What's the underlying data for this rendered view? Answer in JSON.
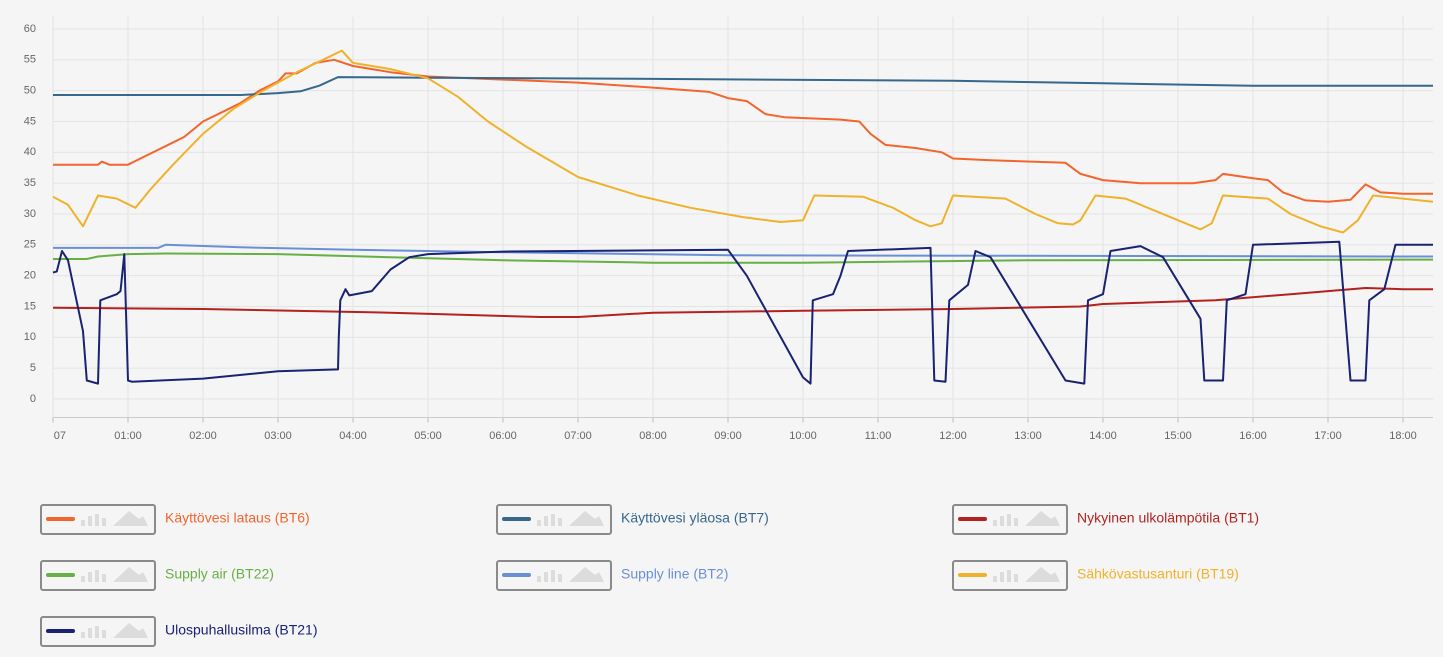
{
  "chart_data": {
    "type": "line",
    "xlim": [
      0,
      18.4
    ],
    "xticks": [
      {
        "value": 0,
        "label": "07"
      },
      {
        "value": 1,
        "label": "01:00"
      },
      {
        "value": 2,
        "label": "02:00"
      },
      {
        "value": 3,
        "label": "03:00"
      },
      {
        "value": 4,
        "label": "04:00"
      },
      {
        "value": 5,
        "label": "05:00"
      },
      {
        "value": 6,
        "label": "06:00"
      },
      {
        "value": 7,
        "label": "07:00"
      },
      {
        "value": 8,
        "label": "08:00"
      },
      {
        "value": 9,
        "label": "09:00"
      },
      {
        "value": 10,
        "label": "10:00"
      },
      {
        "value": 11,
        "label": "11:00"
      },
      {
        "value": 12,
        "label": "12:00"
      },
      {
        "value": 13,
        "label": "13:00"
      },
      {
        "value": 14,
        "label": "14:00"
      },
      {
        "value": 15,
        "label": "15:00"
      },
      {
        "value": 16,
        "label": "16:00"
      },
      {
        "value": 17,
        "label": "17:00"
      },
      {
        "value": 18,
        "label": "18:00"
      }
    ],
    "ylim": [
      -3,
      62
    ],
    "yticks": [
      0,
      5,
      10,
      15,
      20,
      25,
      30,
      35,
      40,
      45,
      50,
      55,
      60
    ],
    "grid": true,
    "series": [
      {
        "name": "Käyttövesi lataus (BT6)",
        "color": "#f2652d",
        "x": [
          0,
          0.6,
          0.65,
          0.75,
          1,
          1.25,
          1.5,
          1.75,
          2,
          2.25,
          2.5,
          2.75,
          3,
          3.1,
          3.25,
          3.5,
          3.75,
          4,
          4.25,
          4.5,
          5,
          6,
          7,
          8,
          8.75,
          9,
          9.25,
          9.5,
          9.75,
          10.5,
          10.75,
          10.9,
          11.1,
          11.5,
          11.85,
          12,
          12.5,
          13.5,
          13.7,
          14,
          14.5,
          15.2,
          15.5,
          15.6,
          16,
          16.2,
          16.4,
          16.7,
          17,
          17.3,
          17.5,
          17.7,
          18,
          18.4
        ],
        "values": [
          38,
          38,
          38.5,
          38,
          38,
          39.5,
          41,
          42.5,
          45,
          46.5,
          48,
          50,
          51.5,
          52.8,
          52.8,
          54.5,
          55,
          54,
          53.5,
          53,
          52.3,
          51.8,
          51.3,
          50.5,
          49.8,
          48.8,
          48.3,
          46.2,
          45.7,
          45.3,
          45,
          43,
          41.2,
          40.7,
          40,
          39,
          38.7,
          38.3,
          36.5,
          35.5,
          35,
          35,
          35.5,
          36.5,
          35.8,
          35.5,
          33.5,
          32.2,
          32,
          32.3,
          34.8,
          33.5,
          33.3,
          33.3
        ]
      },
      {
        "name": "Käyttövesi yläosa (BT7)",
        "color": "#36678c",
        "x": [
          0,
          2.5,
          3,
          3.3,
          3.55,
          3.8,
          5,
          8,
          12,
          14,
          16,
          18.4
        ],
        "values": [
          49.3,
          49.3,
          49.6,
          49.9,
          50.8,
          52.2,
          52.1,
          51.9,
          51.6,
          51.2,
          50.8,
          50.8
        ]
      },
      {
        "name": "Nykyinen ulkolämpötila (BT1)",
        "color": "#b3221f",
        "x": [
          0,
          2,
          4.5,
          6.5,
          7,
          8,
          10,
          12,
          13.7,
          14,
          15.5,
          16.5,
          17.5,
          18,
          18.4
        ],
        "values": [
          14.8,
          14.6,
          14,
          13.3,
          13.3,
          14,
          14.3,
          14.6,
          15,
          15.4,
          16,
          17,
          18,
          17.8,
          17.8
        ]
      },
      {
        "name": "Supply air (BT22)",
        "color": "#67b045",
        "x": [
          0,
          0.45,
          0.6,
          1,
          1.5,
          3,
          4.5,
          6,
          8,
          10,
          13,
          18.4
        ],
        "values": [
          22.7,
          22.7,
          23.1,
          23.5,
          23.6,
          23.5,
          23,
          22.5,
          22.1,
          22.1,
          22.5,
          22.6
        ]
      },
      {
        "name": "Supply line (BT2)",
        "color": "#6a8fd6",
        "x": [
          0,
          1.4,
          1.5,
          2.5,
          4,
          6,
          9,
          18.4
        ],
        "values": [
          24.5,
          24.5,
          25,
          24.6,
          24.2,
          23.8,
          23.3,
          23.1
        ]
      },
      {
        "name": "Sähkövastusanturi (BT19)",
        "color": "#f0b22a",
        "x": [
          0,
          0.2,
          0.4,
          0.6,
          0.85,
          1.1,
          1.3,
          1.6,
          2,
          2.4,
          2.8,
          3.25,
          3.6,
          3.85,
          4,
          4.5,
          5,
          5.4,
          5.8,
          6.3,
          7,
          7.8,
          8.5,
          9.2,
          9.7,
          10,
          10.15,
          10.8,
          11.2,
          11.5,
          11.7,
          11.85,
          12,
          12.7,
          13.1,
          13.4,
          13.6,
          13.7,
          13.9,
          14.3,
          14.7,
          15.1,
          15.3,
          15.45,
          15.6,
          16.2,
          16.5,
          16.9,
          17.2,
          17.4,
          17.6,
          18,
          18.4
        ],
        "values": [
          32.8,
          31.5,
          28,
          33,
          32.5,
          31,
          34,
          38,
          43,
          47,
          50,
          53,
          55,
          56.5,
          54.5,
          53.5,
          52,
          49,
          45,
          41,
          36,
          33,
          31,
          29.5,
          28.7,
          29,
          33,
          32.8,
          31,
          29,
          28,
          28.5,
          33,
          32.5,
          30,
          28.5,
          28.3,
          29,
          33,
          32.5,
          30.5,
          28.5,
          27.5,
          28.5,
          33,
          32.5,
          30,
          28,
          27,
          29,
          33,
          32.5,
          32
        ]
      },
      {
        "name": "Ulospuhallusilma (BT21)",
        "color": "#1a2272",
        "x": [
          0,
          0.05,
          0.12,
          0.2,
          0.4,
          0.45,
          0.6,
          0.63,
          0.85,
          0.9,
          0.95,
          1.0,
          1.05,
          2,
          3,
          3.8,
          3.81,
          3.83,
          3.9,
          3.95,
          4.25,
          4.5,
          4.75,
          5,
          6,
          9,
          9.25,
          10,
          10.1,
          10.13,
          10.4,
          10.5,
          10.6,
          11.7,
          11.75,
          11.9,
          11.95,
          12.2,
          12.3,
          12.5,
          13,
          13.5,
          13.75,
          13.8,
          14,
          14.1,
          14.5,
          14.8,
          15.3,
          15.35,
          15.6,
          15.65,
          15.9,
          16,
          17.15,
          17.3,
          17.5,
          17.55,
          17.75,
          17.9,
          18.4
        ],
        "values": [
          20.5,
          20.7,
          24,
          22.5,
          11,
          3,
          2.5,
          16,
          17,
          17.5,
          23.5,
          3,
          2.8,
          3.3,
          4.5,
          4.8,
          10,
          16,
          17.8,
          16.8,
          17.5,
          21,
          23,
          23.5,
          23.9,
          24.2,
          20,
          3.5,
          2.5,
          16,
          17,
          20,
          24,
          24.5,
          3,
          2.8,
          16,
          18.5,
          24,
          23,
          13,
          3,
          2.5,
          16,
          17,
          24,
          24.8,
          23,
          13,
          3,
          3,
          16,
          17,
          25,
          25.5,
          3,
          3,
          16,
          17.8,
          25,
          25
        ]
      }
    ]
  }
}
